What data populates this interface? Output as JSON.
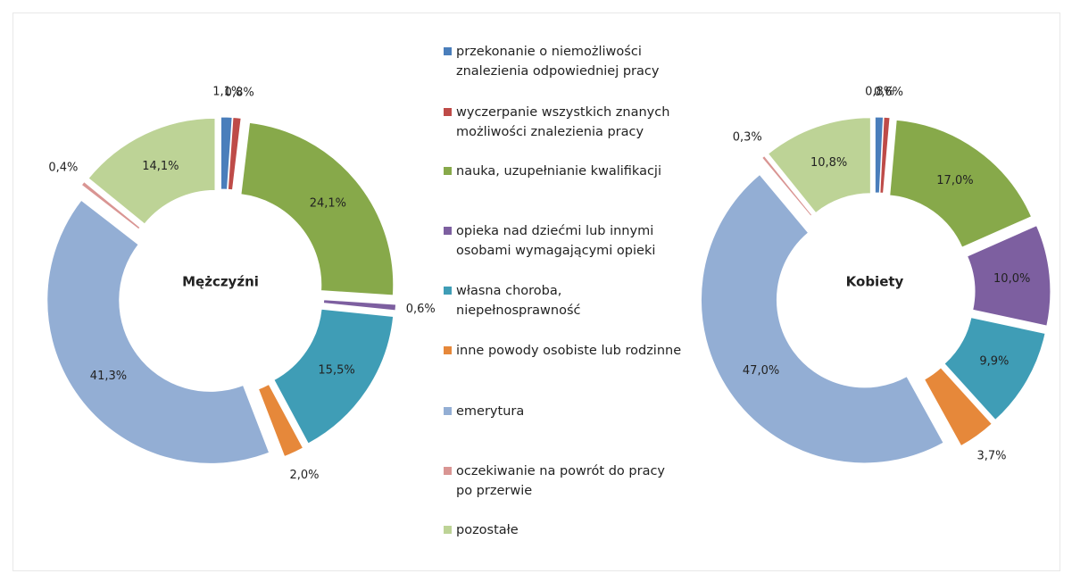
{
  "chart_data": {
    "type": "pie",
    "categories": [
      "przekonanie o niemożliwości znalezienia odpowiedniej pracy",
      "wyczerpanie wszystkich znanych możliwości znalezienia pracy",
      "nauka, uzupełnianie kwalifikacji",
      "opieka nad dziećmi lub innymi osobami wymagającymi opieki",
      "własna choroba, niepełnosprawność",
      "inne powody osobiste lub rodzinne",
      "emerytura",
      "oczekiwanie na powrót do pracy po przerwie",
      "pozostałe"
    ],
    "colors": [
      "#4a7ebb",
      "#be4b48",
      "#87a94a",
      "#7d5fa0",
      "#3f9db6",
      "#e6883a",
      "#93aed4",
      "#d99593",
      "#bdd396"
    ],
    "series": [
      {
        "name": "Mężczyźni",
        "values": [
          1.1,
          0.8,
          24.1,
          0.6,
          15.5,
          2.0,
          41.3,
          0.4,
          14.1
        ],
        "value_labels": [
          "1,1%",
          "0,8%",
          "24,1%",
          "0,6%",
          "15,5%",
          "2,0%",
          "41,3%",
          "0,4%",
          "14,1%"
        ]
      },
      {
        "name": "Kobiety",
        "values": [
          0.8,
          0.6,
          17.0,
          10.0,
          9.9,
          3.7,
          47.0,
          0.3,
          10.8
        ],
        "value_labels": [
          "0,8%",
          "0,6%",
          "17,0%",
          "10,0%",
          "9,9%",
          "3,7%",
          "47,0%",
          "0,3%",
          "10,8%"
        ]
      }
    ]
  }
}
